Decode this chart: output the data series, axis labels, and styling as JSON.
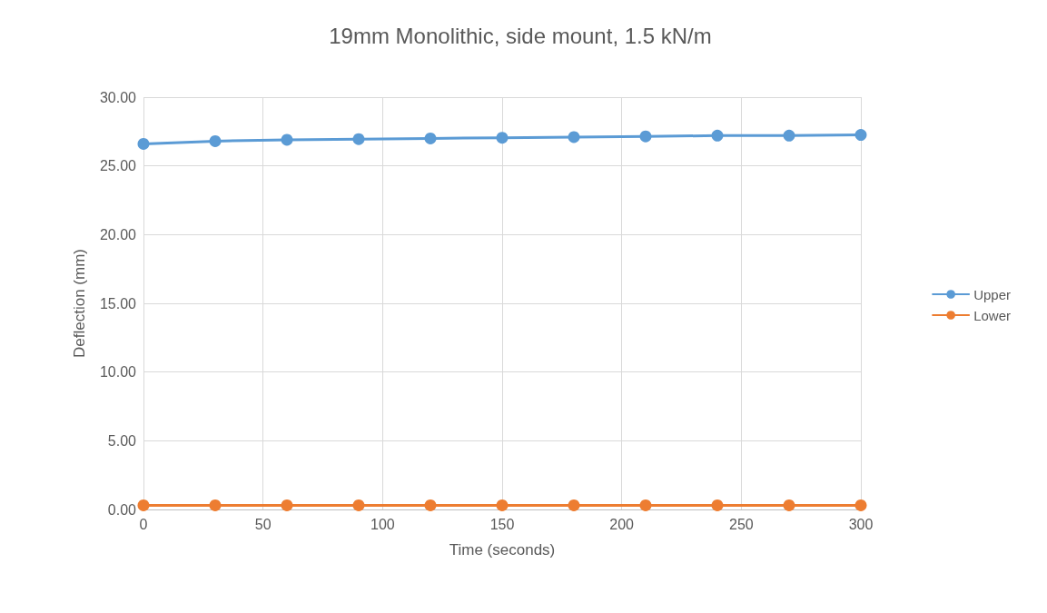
{
  "chart_data": {
    "type": "line",
    "title": "19mm Monolithic, side mount, 1.5 kN/m",
    "xlabel": "Time (seconds)",
    "ylabel": "Deflection (mm)",
    "x": [
      0,
      30,
      60,
      90,
      120,
      150,
      180,
      210,
      240,
      270,
      300
    ],
    "series": [
      {
        "name": "Upper",
        "color": "#5b9bd5",
        "values": [
          26.6,
          26.8,
          26.9,
          26.95,
          27.0,
          27.05,
          27.1,
          27.15,
          27.2,
          27.2,
          27.25
        ]
      },
      {
        "name": "Lower",
        "color": "#ed7d31",
        "values": [
          0.3,
          0.3,
          0.3,
          0.3,
          0.3,
          0.3,
          0.3,
          0.3,
          0.3,
          0.3,
          0.3
        ]
      }
    ],
    "xlim": [
      0,
      300
    ],
    "xticks": [
      0,
      50,
      100,
      150,
      200,
      250,
      300
    ],
    "ylim": [
      0,
      30
    ],
    "yticks": [
      {
        "value": 0,
        "label": "0.00"
      },
      {
        "value": 5,
        "label": "5.00"
      },
      {
        "value": 10,
        "label": "10.00"
      },
      {
        "value": 15,
        "label": "15.00"
      },
      {
        "value": 20,
        "label": "20.00"
      },
      {
        "value": 25,
        "label": "25.00"
      },
      {
        "value": 30,
        "label": "30.00"
      }
    ],
    "grid": true,
    "legend": "right",
    "marker": "circle",
    "line_style": "solid"
  }
}
